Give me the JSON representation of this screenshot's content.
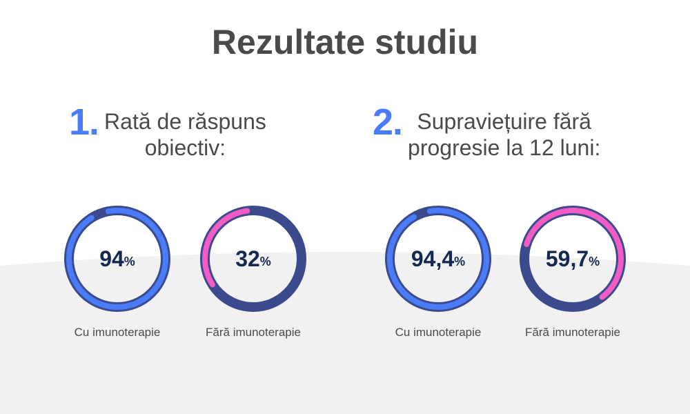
{
  "title": "Rezultate studiu",
  "colors": {
    "accent": "#4a7cf7",
    "dark_ring": "#3b4a8c",
    "pink": "#f25cc4",
    "value_text": "#16284f",
    "background_lower": "#f1f1f1"
  },
  "sections": [
    {
      "number": "1.",
      "heading_lines": [
        "Rată de răspuns",
        "obiectiv:"
      ]
    },
    {
      "number": "2.",
      "heading_lines": [
        "Supraviețuire fără",
        "progresie la 12 luni:"
      ]
    }
  ],
  "chart_data": [
    {
      "type": "pie",
      "title": "Rată de răspuns obiectiv:",
      "categories": [
        "Cu imunoterapie",
        "Fără imunoterapie"
      ],
      "values": [
        94,
        32
      ],
      "value_labels": [
        "94",
        "32"
      ],
      "unit": "%",
      "value_range": [
        0,
        100
      ]
    },
    {
      "type": "pie",
      "title": "Supraviețuire fără progresie la 12 luni:",
      "categories": [
        "Cu imunoterapie",
        "Fără imunoterapie"
      ],
      "values": [
        94.4,
        59.7
      ],
      "value_labels": [
        "94,4",
        "59,7"
      ],
      "unit": "%",
      "value_range": [
        0,
        100
      ]
    }
  ]
}
